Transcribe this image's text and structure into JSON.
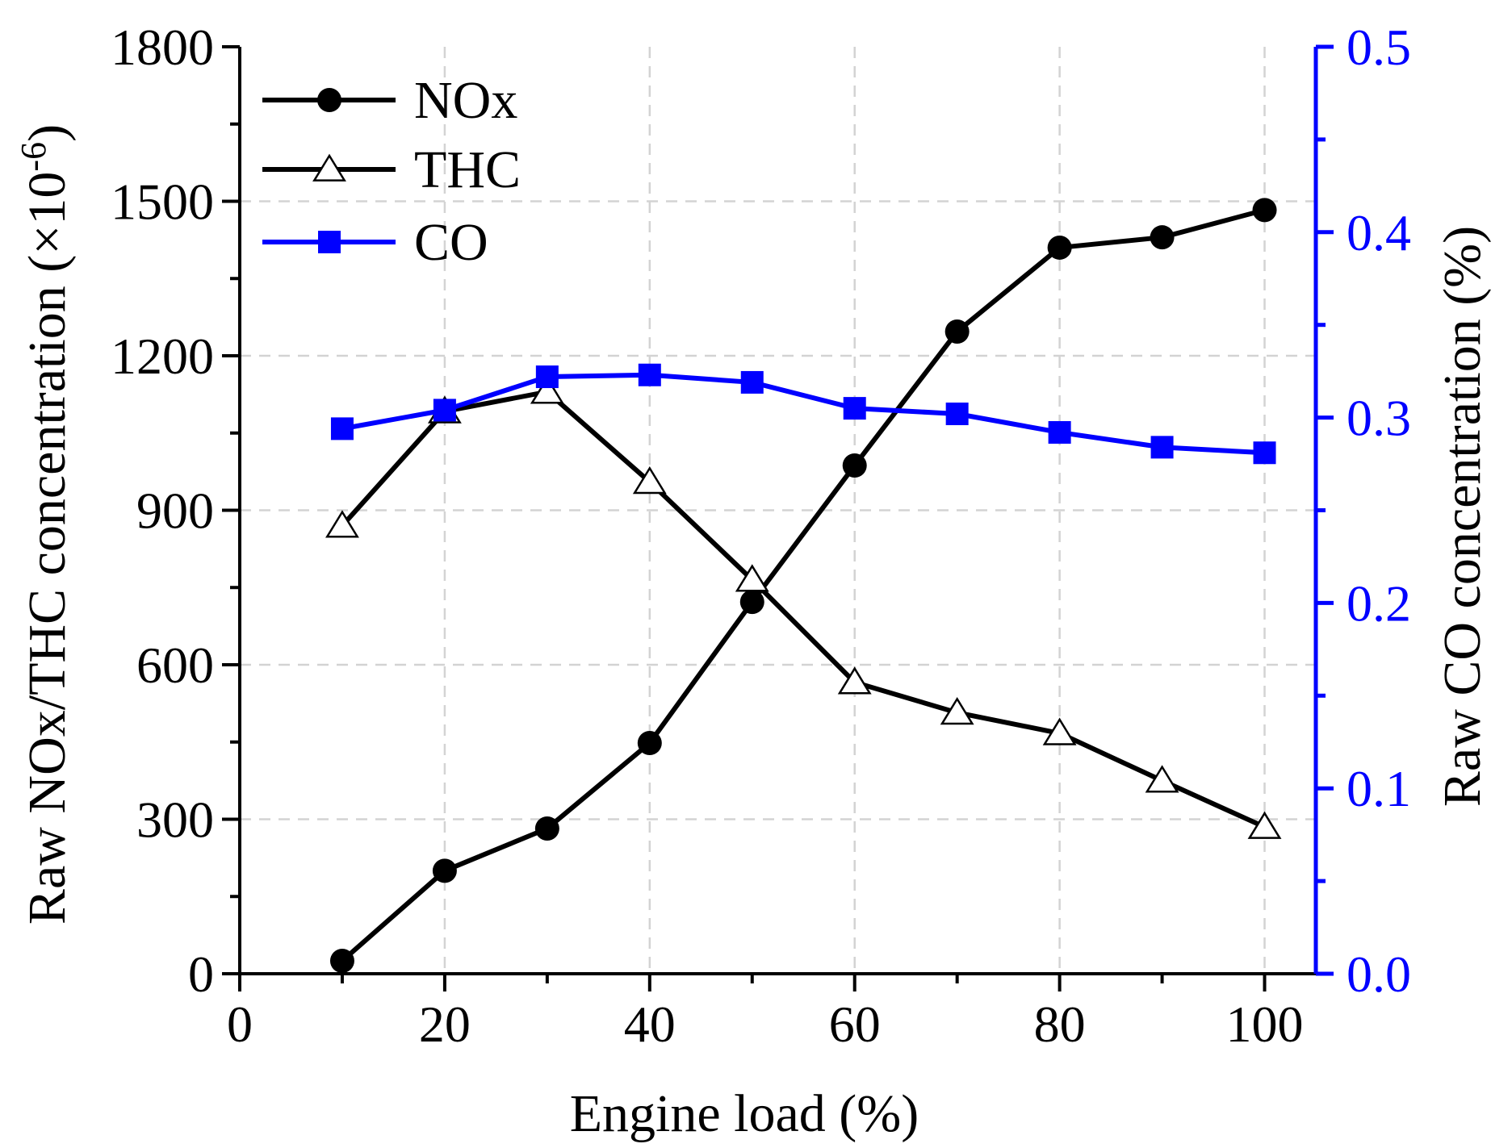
{
  "chart_data": {
    "type": "line",
    "x": [
      10,
      20,
      30,
      40,
      50,
      60,
      70,
      80,
      90,
      100
    ],
    "xlabel": "Engine load (%)",
    "xlim": [
      0,
      105
    ],
    "xticks": [
      0,
      20,
      40,
      60,
      80,
      100
    ],
    "ylabel_main": "Raw NOx/THC concentration (×10",
    "ylabel_sup": "-6",
    "ylabel_end": ")",
    "ylim": [
      0,
      1800
    ],
    "yticks": [
      0,
      300,
      600,
      900,
      1200,
      1500,
      1800
    ],
    "y2label": "Raw CO concentration (%)",
    "y2lim": [
      0,
      0.5
    ],
    "y2ticks": [
      "0.0",
      "0.1",
      "0.2",
      "0.3",
      "0.4",
      "0.5"
    ],
    "grid": true,
    "legend_position": "top-left",
    "series": [
      {
        "name": "NOx",
        "axis": "left",
        "marker": "circle-filled",
        "color": "#000000",
        "values": [
          25,
          200,
          282,
          448,
          722,
          987,
          1247,
          1410,
          1430,
          1483
        ]
      },
      {
        "name": "THC",
        "axis": "left",
        "marker": "triangle-open",
        "color": "#000000",
        "values": [
          870,
          1092,
          1130,
          955,
          765,
          566,
          507,
          467,
          375,
          285
        ]
      },
      {
        "name": "CO",
        "axis": "right",
        "marker": "square-filled",
        "color": "#0000ff",
        "values": [
          0.294,
          0.304,
          0.322,
          0.323,
          0.319,
          0.305,
          0.302,
          0.292,
          0.284,
          0.281
        ]
      }
    ]
  }
}
